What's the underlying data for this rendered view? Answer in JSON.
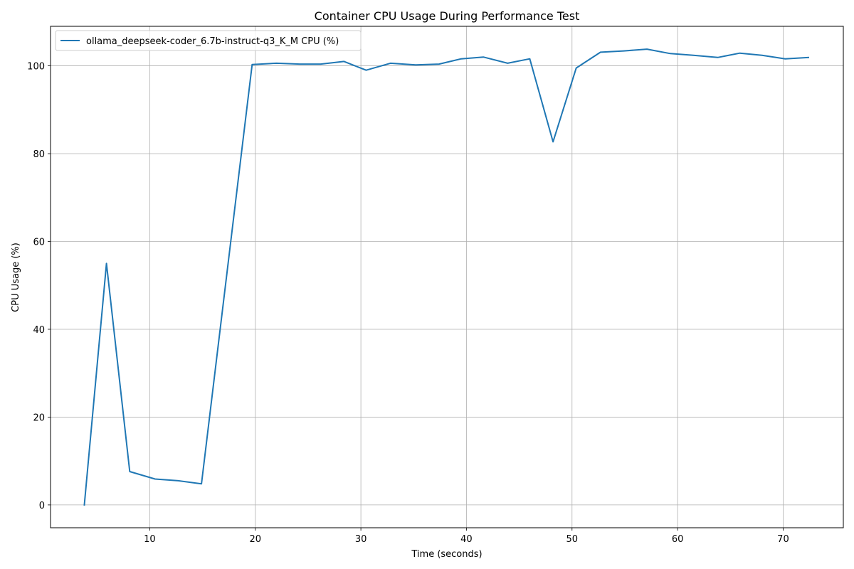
{
  "chart_data": {
    "type": "line",
    "title": "Container CPU Usage During Performance Test",
    "xlabel": "Time (seconds)",
    "ylabel": "CPU Usage (%)",
    "xlim": [
      0.6,
      75.7
    ],
    "ylim": [
      -5.2,
      109.0
    ],
    "xticks": [
      10,
      20,
      30,
      40,
      50,
      60,
      70
    ],
    "yticks": [
      0,
      20,
      40,
      60,
      80,
      100
    ],
    "grid": true,
    "legend_position": "top-left",
    "series": [
      {
        "name": "ollama_deepseek-coder_6.7b-instruct-q3_K_M CPU (%)",
        "color": "#1f77b4",
        "x": [
          3.8,
          5.9,
          8.1,
          10.5,
          12.7,
          14.9,
          19.7,
          22.0,
          24.2,
          26.2,
          28.4,
          30.5,
          32.8,
          35.2,
          37.4,
          39.5,
          41.6,
          43.9,
          46.0,
          48.2,
          50.4,
          52.7,
          54.9,
          57.1,
          59.3,
          61.5,
          63.8,
          65.9,
          68.0,
          70.2,
          72.4
        ],
        "y": [
          0.0,
          55.0,
          7.6,
          5.9,
          5.5,
          4.8,
          100.3,
          100.6,
          100.4,
          100.4,
          101.0,
          99.0,
          100.6,
          100.2,
          100.4,
          101.6,
          102.0,
          100.6,
          101.6,
          82.7,
          99.5,
          103.1,
          103.4,
          103.8,
          102.8,
          102.4,
          101.9,
          102.9,
          102.4,
          101.6,
          101.9
        ]
      }
    ]
  }
}
